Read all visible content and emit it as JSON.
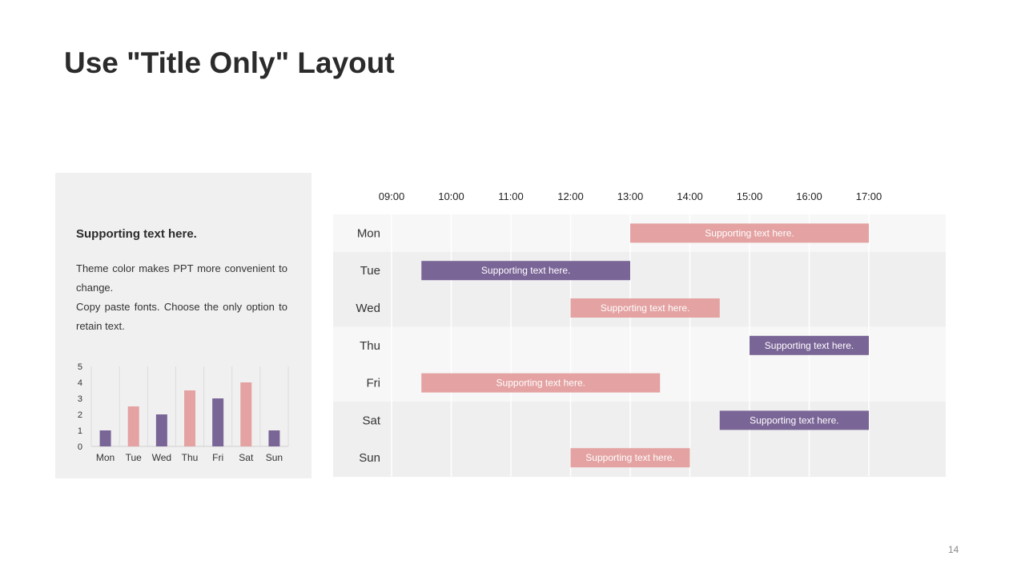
{
  "slide": {
    "title": "Use \"Title Only\" Layout",
    "page_number": "14"
  },
  "panel": {
    "heading": "Supporting text here.",
    "paragraphs": [
      "Theme color makes PPT more convenient to change.",
      "Copy paste fonts. Choose the only option to retain text."
    ]
  },
  "colors": {
    "purple": "#7a6597",
    "pink": "#e4a2a2",
    "panel_bg": "#f0f0f0",
    "row_light": "#f7f7f7",
    "row_dark": "#efefef"
  },
  "chart_data": [
    {
      "type": "bar",
      "categories": [
        "Mon",
        "Tue",
        "Wed",
        "Thu",
        "Fri",
        "Sat",
        "Sun"
      ],
      "values": [
        1,
        2.5,
        2,
        3.5,
        3,
        4,
        1
      ],
      "bar_colors": [
        "purple",
        "pink",
        "purple",
        "pink",
        "purple",
        "pink",
        "purple"
      ],
      "ylim": [
        0,
        5
      ],
      "yticks": [
        "0",
        "1",
        "2",
        "3",
        "4",
        "5"
      ],
      "grid": true
    },
    {
      "type": "gantt",
      "time_ticks": [
        "09:00",
        "10:00",
        "11:00",
        "12:00",
        "13:00",
        "14:00",
        "15:00",
        "16:00",
        "17:00"
      ],
      "time_range": [
        9,
        17
      ],
      "tasks": [
        {
          "day": "Mon",
          "start": 13,
          "end": 17,
          "color": "pink",
          "label": "Supporting text here."
        },
        {
          "day": "Tue",
          "start": 9.5,
          "end": 13,
          "color": "purple",
          "label": "Supporting text here."
        },
        {
          "day": "Wed",
          "start": 12,
          "end": 14.5,
          "color": "pink",
          "label": "Supporting text here."
        },
        {
          "day": "Thu",
          "start": 15,
          "end": 17,
          "color": "purple",
          "label": "Supporting text here."
        },
        {
          "day": "Fri",
          "start": 9.5,
          "end": 13.5,
          "color": "pink",
          "label": "Supporting text here."
        },
        {
          "day": "Sat",
          "start": 14.5,
          "end": 17,
          "color": "purple",
          "label": "Supporting text here."
        },
        {
          "day": "Sun",
          "start": 12,
          "end": 14,
          "color": "pink",
          "label": "Supporting text here."
        }
      ]
    }
  ]
}
